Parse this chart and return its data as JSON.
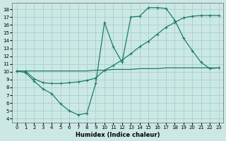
{
  "xlabel": "Humidex (Indice chaleur)",
  "bg_color": "#cce8e5",
  "grid_color": "#a8d4d0",
  "line_color": "#1e7b70",
  "xlim": [
    -0.5,
    23.5
  ],
  "ylim": [
    3.5,
    18.8
  ],
  "xticks": [
    0,
    1,
    2,
    3,
    4,
    5,
    6,
    7,
    8,
    9,
    10,
    11,
    12,
    13,
    14,
    15,
    16,
    17,
    18,
    19,
    20,
    21,
    22,
    23
  ],
  "yticks": [
    4,
    5,
    6,
    7,
    8,
    9,
    10,
    11,
    12,
    13,
    14,
    15,
    16,
    17,
    18
  ],
  "curve1_x": [
    0,
    1,
    2,
    3,
    4,
    5,
    6,
    7,
    8,
    9,
    10,
    11,
    12,
    13,
    14,
    15,
    16,
    17,
    18,
    19,
    20,
    21,
    22,
    23
  ],
  "curve1_y": [
    10.1,
    9.9,
    8.8,
    7.8,
    7.2,
    5.9,
    5.0,
    4.5,
    4.7,
    8.5,
    16.3,
    13.2,
    11.2,
    17.0,
    17.1,
    18.2,
    18.2,
    18.1,
    16.6,
    14.3,
    12.7,
    11.2,
    10.4,
    10.5
  ],
  "curve2_x": [
    0,
    1,
    2,
    3,
    4,
    5,
    6,
    7,
    8,
    9,
    10,
    11,
    12,
    13,
    14,
    15,
    16,
    17,
    18,
    19,
    20,
    21,
    22,
    23
  ],
  "curve2_y": [
    10.1,
    10.1,
    9.1,
    8.6,
    8.5,
    8.5,
    8.6,
    8.7,
    8.9,
    9.2,
    10.2,
    10.8,
    11.5,
    12.3,
    13.2,
    13.9,
    14.8,
    15.7,
    16.3,
    16.9,
    17.1,
    17.2,
    17.2,
    17.2
  ],
  "curve3_x": [
    0,
    1,
    2,
    3,
    4,
    5,
    6,
    7,
    8,
    9,
    10,
    11,
    12,
    13,
    14,
    15,
    16,
    17,
    18,
    19,
    20,
    21,
    22,
    23
  ],
  "curve3_y": [
    10.1,
    10.1,
    10.1,
    10.1,
    10.1,
    10.1,
    10.1,
    10.1,
    10.1,
    10.2,
    10.2,
    10.3,
    10.3,
    10.3,
    10.4,
    10.4,
    10.4,
    10.5,
    10.5,
    10.5,
    10.5,
    10.5,
    10.5,
    10.5
  ]
}
